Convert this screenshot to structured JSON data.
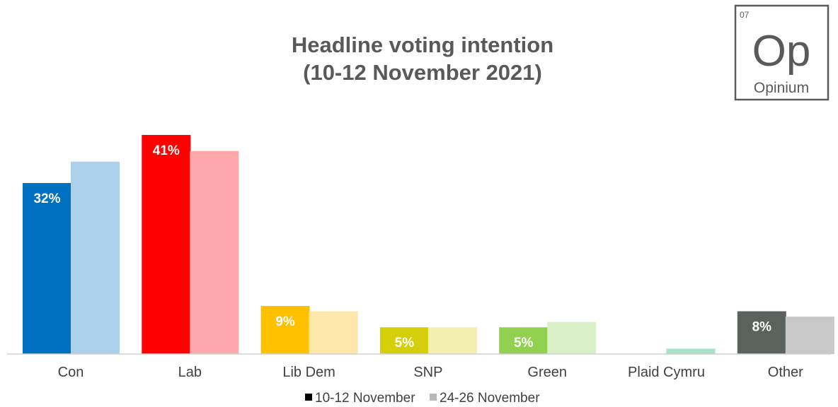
{
  "logo": {
    "number": "07",
    "symbol": "Op",
    "name": "Opinium"
  },
  "chart_data": {
    "type": "bar",
    "title": "Headline voting intention",
    "subtitle": "(10-12 November 2021)",
    "categories": [
      "Con",
      "Lab",
      "Lib Dem",
      "SNP",
      "Green",
      "Plaid Cymru",
      "Other"
    ],
    "series": [
      {
        "name": "10-12 November",
        "values": [
          32,
          41,
          9,
          5,
          5,
          0,
          8
        ],
        "labels": [
          "32%",
          "41%",
          "9%",
          "5%",
          "5%",
          "",
          "8%"
        ]
      },
      {
        "name": "24-26 November",
        "values": [
          36,
          38,
          8,
          5,
          6,
          1,
          7
        ]
      }
    ],
    "colors": {
      "primary": [
        "#0070c0",
        "#ff0000",
        "#ffc000",
        "#d4cf0a",
        "#92d050",
        "#7ccfa6",
        "#5b615c"
      ],
      "secondary": [
        "#abd0ea",
        "#ffa8ab",
        "#ffe7ab",
        "#f2efb0",
        "#d9efc6",
        "#a7e3c6",
        "#c8c8c8"
      ],
      "legend": [
        "#000000",
        "#b8b8b8"
      ]
    },
    "ylim": [
      0,
      41
    ],
    "grid": false,
    "legend_position": "bottom"
  }
}
